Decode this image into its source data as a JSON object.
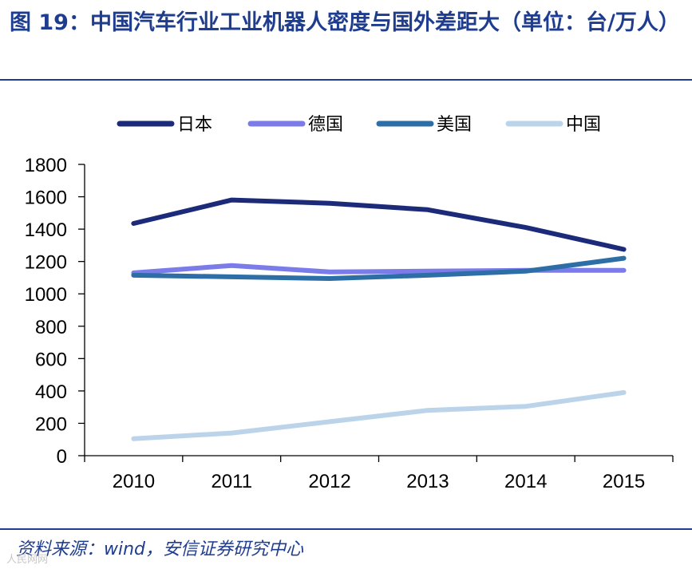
{
  "header": {
    "title": "图 19：中国汽车行业工业机器人密度与国外差距大（单位：台/万人）"
  },
  "footer": {
    "source": "资料来源：wind，安信证券研究中心",
    "watermark": "人民网网"
  },
  "chart_data": {
    "type": "line",
    "title": "",
    "xlabel": "",
    "ylabel": "",
    "categories": [
      "2010",
      "2011",
      "2012",
      "2013",
      "2014",
      "2015"
    ],
    "ylim": [
      0,
      1800
    ],
    "yticks": [
      0,
      200,
      400,
      600,
      800,
      1000,
      1200,
      1400,
      1600,
      1800
    ],
    "grid": false,
    "legend_position": "top",
    "series": [
      {
        "name": "日本",
        "color": "#1c2a7a",
        "values": [
          1435,
          1580,
          1560,
          1520,
          1410,
          1275
        ]
      },
      {
        "name": "德国",
        "color": "#7b7bea",
        "values": [
          1130,
          1175,
          1135,
          1140,
          1145,
          1145
        ]
      },
      {
        "name": "美国",
        "color": "#2e6ea6",
        "values": [
          1115,
          1105,
          1095,
          1115,
          1140,
          1220
        ]
      },
      {
        "name": "中国",
        "color": "#bcd4ea",
        "values": [
          105,
          140,
          210,
          280,
          305,
          390
        ]
      }
    ]
  }
}
